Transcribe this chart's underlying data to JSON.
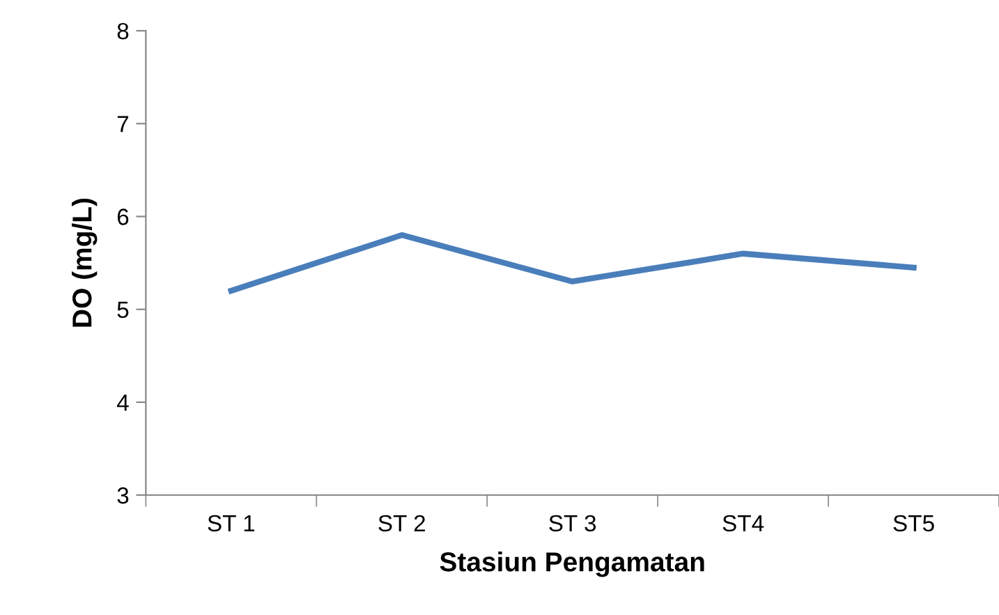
{
  "chart_data": {
    "type": "line",
    "xlabel": "Stasiun Pengamatan",
    "ylabel": "DO (mg/L)",
    "categories": [
      "ST 1",
      "ST 2",
      "ST 3",
      "ST4",
      "ST5"
    ],
    "series": [
      {
        "color": "#4a7ebb",
        "values": [
          5.2,
          5.8,
          5.3,
          5.6,
          5.45
        ]
      }
    ],
    "ylim": [
      3,
      8
    ],
    "yticks": [
      3,
      4,
      5,
      6,
      7,
      8
    ],
    "grid": false,
    "legend": false,
    "marker": "none",
    "line_style": "solid"
  }
}
